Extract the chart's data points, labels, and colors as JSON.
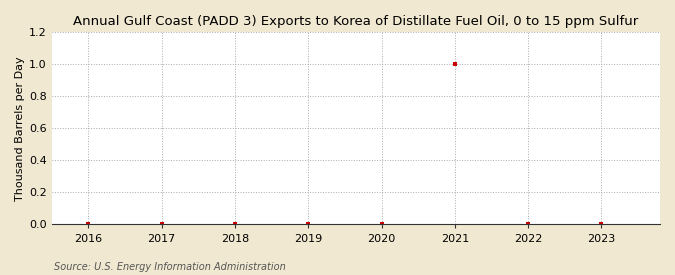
{
  "title": "Annual Gulf Coast (PADD 3) Exports to Korea of Distillate Fuel Oil, 0 to 15 ppm Sulfur",
  "ylabel": "Thousand Barrels per Day",
  "source": "Source: U.S. Energy Information Administration",
  "figure_background_color": "#f0e8d0",
  "plot_background_color": "#ffffff",
  "x_data": [
    2016,
    2017,
    2018,
    2019,
    2020,
    2021,
    2022,
    2023
  ],
  "y_data": [
    0.0,
    0.0,
    0.003,
    0.003,
    0.003,
    1.0,
    0.003,
    0.003
  ],
  "marker_color": "#cc0000",
  "ylim": [
    0.0,
    1.2
  ],
  "yticks": [
    0.0,
    0.2,
    0.4,
    0.6,
    0.8,
    1.0,
    1.2
  ],
  "xlim": [
    2015.5,
    2023.8
  ],
  "xticks": [
    2016,
    2017,
    2018,
    2019,
    2020,
    2021,
    2022,
    2023
  ],
  "title_fontsize": 9.5,
  "ylabel_fontsize": 8.0,
  "tick_fontsize": 8.0,
  "source_fontsize": 7.0,
  "grid_color": "#aaaaaa",
  "grid_style": ":",
  "grid_linewidth": 0.7
}
